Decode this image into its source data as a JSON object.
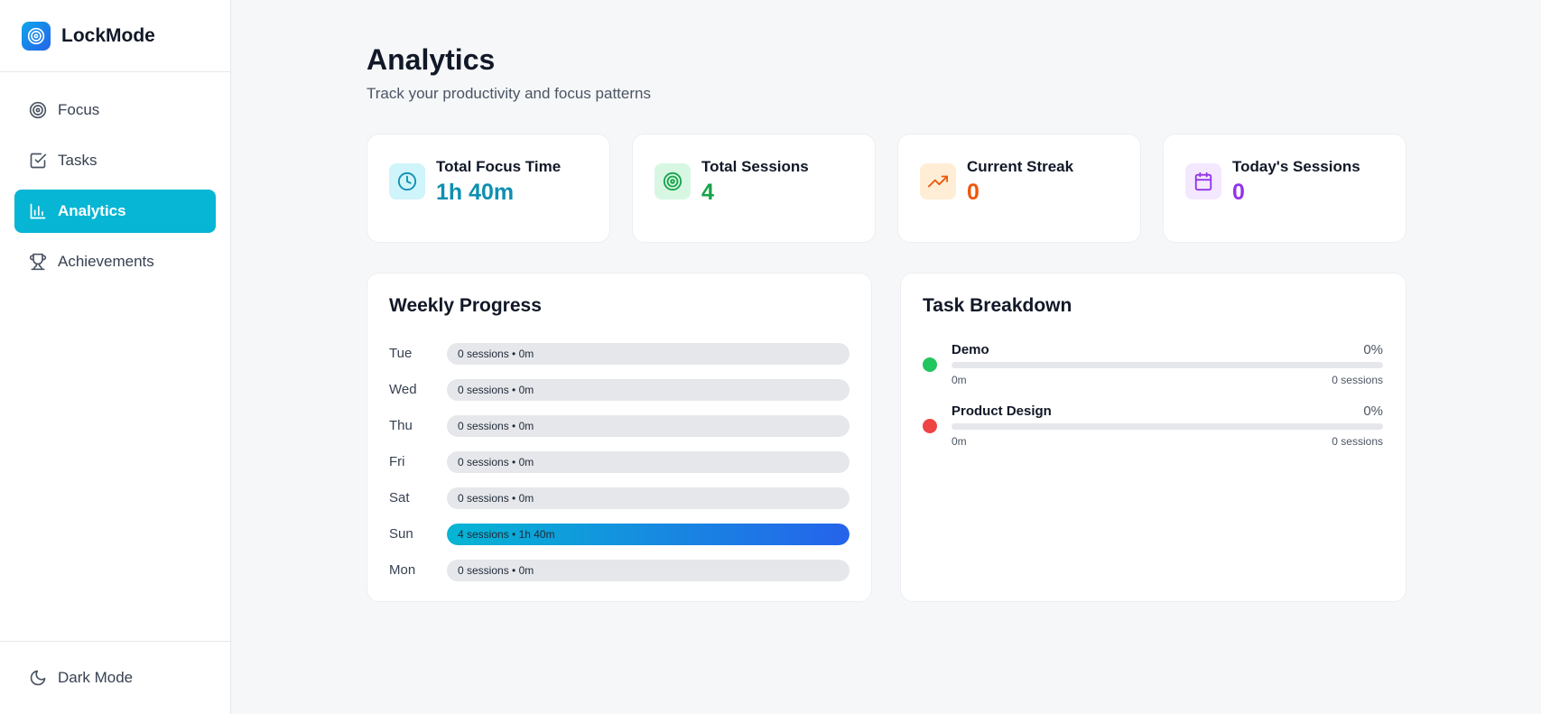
{
  "app": {
    "name": "LockMode",
    "logo_icon": "target-icon"
  },
  "sidebar": {
    "items": [
      {
        "label": "Focus",
        "icon": "target-icon"
      },
      {
        "label": "Tasks",
        "icon": "checkbox-icon"
      },
      {
        "label": "Analytics",
        "icon": "bar-chart-icon",
        "active": true
      },
      {
        "label": "Achievements",
        "icon": "trophy-icon"
      }
    ],
    "footer": {
      "label": "Dark Mode",
      "icon": "moon-icon"
    }
  },
  "page": {
    "title": "Analytics",
    "subtitle": "Track your productivity and focus patterns"
  },
  "stats": [
    {
      "label": "Total Focus Time",
      "value": "1h 40m",
      "icon": "clock-icon",
      "color": "#0e8fb0",
      "bg": "#cff4fa"
    },
    {
      "label": "Total Sessions",
      "value": "4",
      "icon": "target-icon",
      "color": "#16a34a",
      "bg": "#d7f7e3"
    },
    {
      "label": "Current Streak",
      "value": "0",
      "icon": "trending-up-icon",
      "color": "#ea580c",
      "bg": "#ffedd5"
    },
    {
      "label": "Today's Sessions",
      "value": "0",
      "icon": "calendar-icon",
      "color": "#9333ea",
      "bg": "#f3e8ff"
    }
  ],
  "weekly": {
    "title": "Weekly Progress",
    "days": [
      {
        "day": "Tue",
        "text": "0 sessions • 0m",
        "fraction": 0
      },
      {
        "day": "Wed",
        "text": "0 sessions • 0m",
        "fraction": 0
      },
      {
        "day": "Thu",
        "text": "0 sessions • 0m",
        "fraction": 0
      },
      {
        "day": "Fri",
        "text": "0 sessions • 0m",
        "fraction": 0
      },
      {
        "day": "Sat",
        "text": "0 sessions • 0m",
        "fraction": 0
      },
      {
        "day": "Sun",
        "text": "4 sessions • 1h 40m",
        "fraction": 1
      },
      {
        "day": "Mon",
        "text": "0 sessions • 0m",
        "fraction": 0
      }
    ]
  },
  "tasks": {
    "title": "Task Breakdown",
    "items": [
      {
        "name": "Demo",
        "percent": "0%",
        "fraction": 0,
        "time": "0m",
        "sessions": "0 sessions",
        "color": "#22c55e"
      },
      {
        "name": "Product Design",
        "percent": "0%",
        "fraction": 0,
        "time": "0m",
        "sessions": "0 sessions",
        "color": "#ef4444"
      }
    ]
  }
}
